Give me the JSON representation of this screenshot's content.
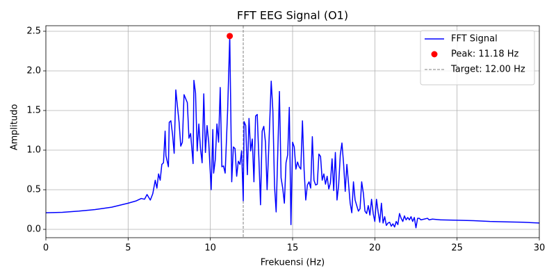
{
  "chart_data": {
    "type": "line",
    "title": "FFT EEG Signal (O1)",
    "xlabel": "Frekuensi (Hz)",
    "ylabel": "Amplitudo",
    "xlim": [
      0,
      30
    ],
    "ylim": [
      -0.105,
      2.57
    ],
    "xticks": [
      0,
      5,
      10,
      15,
      20,
      25,
      30
    ],
    "yticks": [
      {
        "value": 0,
        "label": "0.0"
      },
      0.5,
      {
        "value": 1,
        "label": "1.0"
      },
      1.5,
      {
        "value": 2,
        "label": "2.0"
      },
      2.5
    ],
    "grid": true,
    "legend": "upper right",
    "series": [
      {
        "name": "FFT Signal",
        "color": "#0000ff",
        "marker": "none",
        "x": [
          0,
          1,
          2,
          3,
          4,
          5,
          5.5,
          5.8,
          6.0,
          6.15,
          6.35,
          6.5,
          6.65,
          6.75,
          6.85,
          6.95,
          7.05,
          7.15,
          7.25,
          7.3,
          7.45,
          7.5,
          7.6,
          7.7,
          7.8,
          7.9,
          8.0,
          8.1,
          8.2,
          8.3,
          8.4,
          8.6,
          8.7,
          8.8,
          8.95,
          9.0,
          9.1,
          9.2,
          9.3,
          9.4,
          9.5,
          9.6,
          9.7,
          9.8,
          9.9,
          10.05,
          10.15,
          10.2,
          10.3,
          10.4,
          10.5,
          10.6,
          10.7,
          10.8,
          10.9,
          11.05,
          11.18,
          11.3,
          11.4,
          11.5,
          11.6,
          11.7,
          11.8,
          11.9,
          12.0,
          12.05,
          12.15,
          12.25,
          12.35,
          12.45,
          12.55,
          12.65,
          12.75,
          12.85,
          12.95,
          13.05,
          13.15,
          13.25,
          13.35,
          13.45,
          13.55,
          13.7,
          13.8,
          13.9,
          14.0,
          14.1,
          14.2,
          14.3,
          14.4,
          14.5,
          14.6,
          14.7,
          14.8,
          14.9,
          15.0,
          15.1,
          15.2,
          15.3,
          15.4,
          15.5,
          15.6,
          15.7,
          15.8,
          15.9,
          16.0,
          16.1,
          16.2,
          16.3,
          16.4,
          16.5,
          16.6,
          16.7,
          16.8,
          16.9,
          17.0,
          17.1,
          17.2,
          17.3,
          17.4,
          17.5,
          17.6,
          17.7,
          17.8,
          17.9,
          18.0,
          18.1,
          18.2,
          18.3,
          18.4,
          18.5,
          18.6,
          18.7,
          18.8,
          18.9,
          19.0,
          19.1,
          19.2,
          19.3,
          19.4,
          19.5,
          19.6,
          19.7,
          19.8,
          19.9,
          20.0,
          20.1,
          20.2,
          20.3,
          20.4,
          20.5,
          20.6,
          20.7,
          20.8,
          20.9,
          21.0,
          21.1,
          21.2,
          21.3,
          21.4,
          21.5,
          21.6,
          21.7,
          21.8,
          21.9,
          22.0,
          22.1,
          22.2,
          22.3,
          22.4,
          22.5,
          22.6,
          22.7,
          22.8,
          23.0,
          23.2,
          23.3,
          23.5,
          24,
          25,
          26,
          27,
          28,
          29,
          30
        ],
        "values": [
          0.21,
          0.215,
          0.23,
          0.25,
          0.28,
          0.33,
          0.36,
          0.39,
          0.38,
          0.44,
          0.37,
          0.45,
          0.62,
          0.52,
          0.7,
          0.62,
          0.82,
          0.84,
          1.24,
          0.93,
          0.79,
          1.35,
          1.37,
          1.2,
          0.96,
          1.76,
          1.55,
          1.35,
          1.05,
          1.1,
          1.7,
          1.6,
          1.15,
          1.21,
          0.83,
          1.88,
          1.72,
          0.99,
          1.33,
          1.02,
          0.84,
          1.71,
          0.97,
          1.31,
          1.1,
          0.5,
          1.26,
          0.71,
          0.88,
          1.33,
          1.1,
          1.79,
          0.79,
          0.8,
          0.71,
          1.5,
          2.44,
          0.6,
          1.04,
          1.02,
          0.67,
          0.86,
          0.82,
          0.99,
          0.36,
          1.36,
          1.31,
          0.69,
          1.4,
          0.99,
          1.14,
          0.6,
          1.43,
          1.45,
          0.9,
          0.31,
          1.24,
          1.3,
          1.1,
          0.5,
          1.02,
          1.87,
          1.5,
          0.55,
          0.22,
          0.98,
          1.74,
          0.65,
          0.52,
          0.33,
          0.84,
          0.94,
          1.54,
          0.06,
          1.1,
          1.04,
          0.76,
          0.85,
          0.79,
          0.76,
          1.37,
          0.75,
          0.37,
          0.56,
          0.6,
          0.52,
          1.17,
          0.62,
          0.56,
          0.57,
          0.95,
          0.92,
          0.62,
          0.7,
          0.57,
          0.67,
          0.51,
          0.59,
          0.89,
          0.49,
          0.97,
          0.37,
          0.56,
          0.94,
          1.09,
          0.83,
          0.48,
          0.82,
          0.58,
          0.33,
          0.21,
          0.6,
          0.37,
          0.3,
          0.23,
          0.26,
          0.6,
          0.46,
          0.23,
          0.2,
          0.3,
          0.18,
          0.38,
          0.2,
          0.1,
          0.38,
          0.22,
          0.09,
          0.33,
          0.08,
          0.16,
          0.05,
          0.08,
          0.09,
          0.04,
          0.07,
          0.03,
          0.1,
          0.06,
          0.2,
          0.14,
          0.1,
          0.17,
          0.12,
          0.15,
          0.12,
          0.16,
          0.1,
          0.15,
          0.02,
          0.14,
          0.14,
          0.12,
          0.13,
          0.14,
          0.12,
          0.13,
          0.12,
          0.115,
          0.11,
          0.1,
          0.095,
          0.09,
          0.08
        ]
      },
      {
        "name": "Peak: 11.18 Hz",
        "color": "#ff0000",
        "marker": "circle",
        "x": [
          11.18
        ],
        "values": [
          2.44
        ]
      }
    ],
    "vlines": [
      {
        "name": "Target: 12.00 Hz",
        "color": "#808080",
        "style": "dashed",
        "x": 12
      }
    ]
  }
}
